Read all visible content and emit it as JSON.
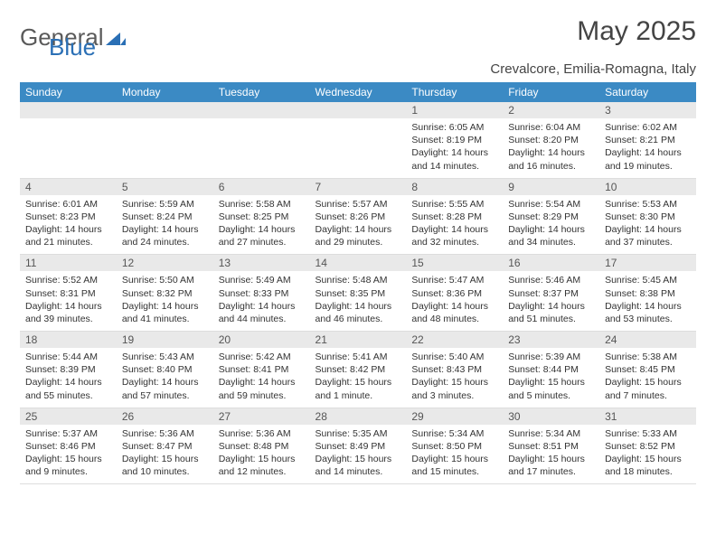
{
  "logo": {
    "word1": "General",
    "word2": "Blue"
  },
  "header": {
    "month_title": "May 2025",
    "location": "Crevalcore, Emilia-Romagna, Italy"
  },
  "colors": {
    "header_bg": "#3b8ac4",
    "header_text": "#ffffff",
    "daynum_bg": "#e9e9e9",
    "text": "#333333",
    "logo_gray": "#5a5a5a",
    "logo_blue": "#2a6fb5"
  },
  "day_names": [
    "Sunday",
    "Monday",
    "Tuesday",
    "Wednesday",
    "Thursday",
    "Friday",
    "Saturday"
  ],
  "weeks": [
    [
      {
        "date": "",
        "sunrise": "",
        "sunset": "",
        "daylight": ""
      },
      {
        "date": "",
        "sunrise": "",
        "sunset": "",
        "daylight": ""
      },
      {
        "date": "",
        "sunrise": "",
        "sunset": "",
        "daylight": ""
      },
      {
        "date": "",
        "sunrise": "",
        "sunset": "",
        "daylight": ""
      },
      {
        "date": "1",
        "sunrise": "Sunrise: 6:05 AM",
        "sunset": "Sunset: 8:19 PM",
        "daylight": "Daylight: 14 hours and 14 minutes."
      },
      {
        "date": "2",
        "sunrise": "Sunrise: 6:04 AM",
        "sunset": "Sunset: 8:20 PM",
        "daylight": "Daylight: 14 hours and 16 minutes."
      },
      {
        "date": "3",
        "sunrise": "Sunrise: 6:02 AM",
        "sunset": "Sunset: 8:21 PM",
        "daylight": "Daylight: 14 hours and 19 minutes."
      }
    ],
    [
      {
        "date": "4",
        "sunrise": "Sunrise: 6:01 AM",
        "sunset": "Sunset: 8:23 PM",
        "daylight": "Daylight: 14 hours and 21 minutes."
      },
      {
        "date": "5",
        "sunrise": "Sunrise: 5:59 AM",
        "sunset": "Sunset: 8:24 PM",
        "daylight": "Daylight: 14 hours and 24 minutes."
      },
      {
        "date": "6",
        "sunrise": "Sunrise: 5:58 AM",
        "sunset": "Sunset: 8:25 PM",
        "daylight": "Daylight: 14 hours and 27 minutes."
      },
      {
        "date": "7",
        "sunrise": "Sunrise: 5:57 AM",
        "sunset": "Sunset: 8:26 PM",
        "daylight": "Daylight: 14 hours and 29 minutes."
      },
      {
        "date": "8",
        "sunrise": "Sunrise: 5:55 AM",
        "sunset": "Sunset: 8:28 PM",
        "daylight": "Daylight: 14 hours and 32 minutes."
      },
      {
        "date": "9",
        "sunrise": "Sunrise: 5:54 AM",
        "sunset": "Sunset: 8:29 PM",
        "daylight": "Daylight: 14 hours and 34 minutes."
      },
      {
        "date": "10",
        "sunrise": "Sunrise: 5:53 AM",
        "sunset": "Sunset: 8:30 PM",
        "daylight": "Daylight: 14 hours and 37 minutes."
      }
    ],
    [
      {
        "date": "11",
        "sunrise": "Sunrise: 5:52 AM",
        "sunset": "Sunset: 8:31 PM",
        "daylight": "Daylight: 14 hours and 39 minutes."
      },
      {
        "date": "12",
        "sunrise": "Sunrise: 5:50 AM",
        "sunset": "Sunset: 8:32 PM",
        "daylight": "Daylight: 14 hours and 41 minutes."
      },
      {
        "date": "13",
        "sunrise": "Sunrise: 5:49 AM",
        "sunset": "Sunset: 8:33 PM",
        "daylight": "Daylight: 14 hours and 44 minutes."
      },
      {
        "date": "14",
        "sunrise": "Sunrise: 5:48 AM",
        "sunset": "Sunset: 8:35 PM",
        "daylight": "Daylight: 14 hours and 46 minutes."
      },
      {
        "date": "15",
        "sunrise": "Sunrise: 5:47 AM",
        "sunset": "Sunset: 8:36 PM",
        "daylight": "Daylight: 14 hours and 48 minutes."
      },
      {
        "date": "16",
        "sunrise": "Sunrise: 5:46 AM",
        "sunset": "Sunset: 8:37 PM",
        "daylight": "Daylight: 14 hours and 51 minutes."
      },
      {
        "date": "17",
        "sunrise": "Sunrise: 5:45 AM",
        "sunset": "Sunset: 8:38 PM",
        "daylight": "Daylight: 14 hours and 53 minutes."
      }
    ],
    [
      {
        "date": "18",
        "sunrise": "Sunrise: 5:44 AM",
        "sunset": "Sunset: 8:39 PM",
        "daylight": "Daylight: 14 hours and 55 minutes."
      },
      {
        "date": "19",
        "sunrise": "Sunrise: 5:43 AM",
        "sunset": "Sunset: 8:40 PM",
        "daylight": "Daylight: 14 hours and 57 minutes."
      },
      {
        "date": "20",
        "sunrise": "Sunrise: 5:42 AM",
        "sunset": "Sunset: 8:41 PM",
        "daylight": "Daylight: 14 hours and 59 minutes."
      },
      {
        "date": "21",
        "sunrise": "Sunrise: 5:41 AM",
        "sunset": "Sunset: 8:42 PM",
        "daylight": "Daylight: 15 hours and 1 minute."
      },
      {
        "date": "22",
        "sunrise": "Sunrise: 5:40 AM",
        "sunset": "Sunset: 8:43 PM",
        "daylight": "Daylight: 15 hours and 3 minutes."
      },
      {
        "date": "23",
        "sunrise": "Sunrise: 5:39 AM",
        "sunset": "Sunset: 8:44 PM",
        "daylight": "Daylight: 15 hours and 5 minutes."
      },
      {
        "date": "24",
        "sunrise": "Sunrise: 5:38 AM",
        "sunset": "Sunset: 8:45 PM",
        "daylight": "Daylight: 15 hours and 7 minutes."
      }
    ],
    [
      {
        "date": "25",
        "sunrise": "Sunrise: 5:37 AM",
        "sunset": "Sunset: 8:46 PM",
        "daylight": "Daylight: 15 hours and 9 minutes."
      },
      {
        "date": "26",
        "sunrise": "Sunrise: 5:36 AM",
        "sunset": "Sunset: 8:47 PM",
        "daylight": "Daylight: 15 hours and 10 minutes."
      },
      {
        "date": "27",
        "sunrise": "Sunrise: 5:36 AM",
        "sunset": "Sunset: 8:48 PM",
        "daylight": "Daylight: 15 hours and 12 minutes."
      },
      {
        "date": "28",
        "sunrise": "Sunrise: 5:35 AM",
        "sunset": "Sunset: 8:49 PM",
        "daylight": "Daylight: 15 hours and 14 minutes."
      },
      {
        "date": "29",
        "sunrise": "Sunrise: 5:34 AM",
        "sunset": "Sunset: 8:50 PM",
        "daylight": "Daylight: 15 hours and 15 minutes."
      },
      {
        "date": "30",
        "sunrise": "Sunrise: 5:34 AM",
        "sunset": "Sunset: 8:51 PM",
        "daylight": "Daylight: 15 hours and 17 minutes."
      },
      {
        "date": "31",
        "sunrise": "Sunrise: 5:33 AM",
        "sunset": "Sunset: 8:52 PM",
        "daylight": "Daylight: 15 hours and 18 minutes."
      }
    ]
  ]
}
